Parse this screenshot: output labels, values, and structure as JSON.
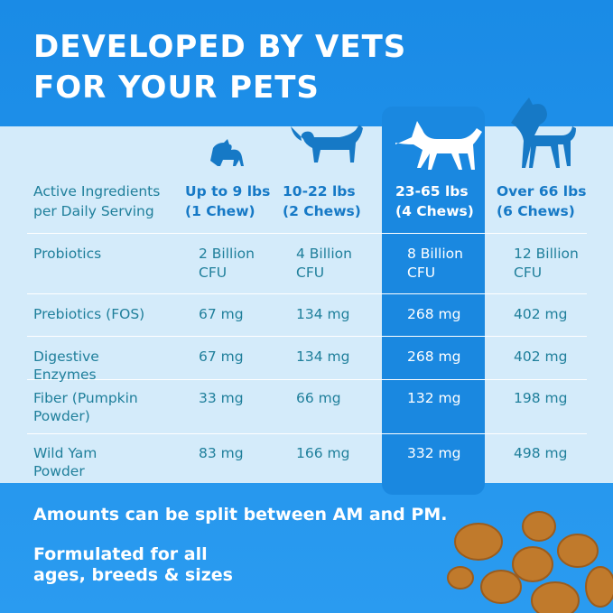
{
  "header": {
    "title": [
      "DEVELOPED BY VETS",
      "FOR YOUR PETS"
    ]
  },
  "table": {
    "columns": [
      "Active Ingredients per Daily Serving",
      "Up to 9 lbs (1 Chew)",
      "10-22 lbs (2 Chews)",
      "23-65 lbs (4 Chews)",
      "Over 66 lbs (6 Chews)"
    ],
    "rows": [
      [
        "Probiotics",
        "2 Billion CFU",
        "4 Billion CFU",
        "8 Billion CFU",
        "12 Billion CFU"
      ],
      [
        "Prebiotics (FOS)",
        "67 mg",
        "134 mg",
        "268 mg",
        "402 mg"
      ],
      [
        "Digestive Enzymes",
        "67 mg",
        "134 mg",
        "268 mg",
        "402 mg"
      ],
      [
        "Fiber (Pumpkin Powder)",
        "33 mg",
        "66 mg",
        "132 mg",
        "198 mg"
      ],
      [
        "Wild Yam Powder",
        "83 mg",
        "166 mg",
        "332 mg",
        "498 mg"
      ]
    ]
  },
  "footer": [
    "Amounts can be split between AM and PM.",
    "Formulated for all ages, breeds & sizes"
  ]
}
